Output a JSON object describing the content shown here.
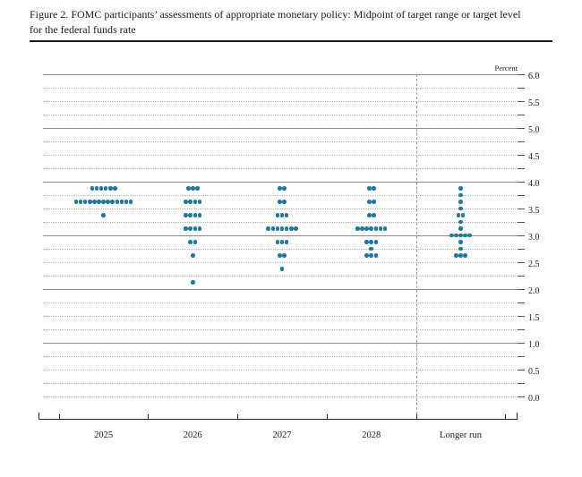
{
  "figure": {
    "title": "Figure 2. FOMC participants’ assessments of appropriate monetary policy: Midpoint of target range or target level for the federal funds rate",
    "unit_label": "Percent"
  },
  "chart_data": {
    "type": "scatter",
    "subtype": "fomc-dot-plot",
    "title": "FOMC participants’ assessments of appropriate monetary policy: Midpoint of target range or target level for the federal funds rate",
    "unit_label": "Percent",
    "xlabel": "",
    "ylabel": "Percent",
    "ylim": [
      0.0,
      6.0
    ],
    "y_label_step": 0.5,
    "y_grid_step": 0.25,
    "y_tick_labels": [
      "6.0",
      "5.5",
      "5.0",
      "4.5",
      "4.0",
      "3.5",
      "3.0",
      "2.5",
      "2.0",
      "1.5",
      "1.0",
      "0.5",
      "0.0"
    ],
    "grid": "dotted-quarter-solid-integer",
    "legend_position": "none",
    "dot_color": "#1b7aa3",
    "categories": [
      "2025",
      "2026",
      "2027",
      "2028",
      "Longer run"
    ],
    "series": [
      {
        "category": "2025",
        "dots": [
          {
            "rate": 3.875,
            "count": 6
          },
          {
            "rate": 3.625,
            "count": 13
          },
          {
            "rate": 3.375,
            "count": 1
          }
        ]
      },
      {
        "category": "2026",
        "dots": [
          {
            "rate": 3.875,
            "count": 3
          },
          {
            "rate": 3.625,
            "count": 4
          },
          {
            "rate": 3.375,
            "count": 4
          },
          {
            "rate": 3.125,
            "count": 4
          },
          {
            "rate": 2.875,
            "count": 2
          },
          {
            "rate": 2.625,
            "count": 1
          },
          {
            "rate": 2.125,
            "count": 1
          }
        ]
      },
      {
        "category": "2027",
        "dots": [
          {
            "rate": 3.875,
            "count": 2
          },
          {
            "rate": 3.625,
            "count": 2
          },
          {
            "rate": 3.375,
            "count": 3
          },
          {
            "rate": 3.125,
            "count": 7
          },
          {
            "rate": 2.875,
            "count": 3
          },
          {
            "rate": 2.625,
            "count": 2
          },
          {
            "rate": 2.375,
            "count": 1
          }
        ]
      },
      {
        "category": "2028",
        "dots": [
          {
            "rate": 3.875,
            "count": 2
          },
          {
            "rate": 3.625,
            "count": 2
          },
          {
            "rate": 3.375,
            "count": 2
          },
          {
            "rate": 3.125,
            "count": 7
          },
          {
            "rate": 2.875,
            "count": 3
          },
          {
            "rate": 2.75,
            "count": 1
          },
          {
            "rate": 2.625,
            "count": 3
          }
        ]
      },
      {
        "category": "Longer run",
        "dots": [
          {
            "rate": 3.875,
            "count": 1
          },
          {
            "rate": 3.75,
            "count": 1
          },
          {
            "rate": 3.625,
            "count": 1
          },
          {
            "rate": 3.5,
            "count": 1
          },
          {
            "rate": 3.375,
            "count": 2
          },
          {
            "rate": 3.25,
            "count": 1
          },
          {
            "rate": 3.125,
            "count": 1
          },
          {
            "rate": 3.0,
            "count": 5
          },
          {
            "rate": 2.875,
            "count": 1
          },
          {
            "rate": 2.75,
            "count": 1
          },
          {
            "rate": 2.625,
            "count": 3
          }
        ]
      }
    ]
  }
}
